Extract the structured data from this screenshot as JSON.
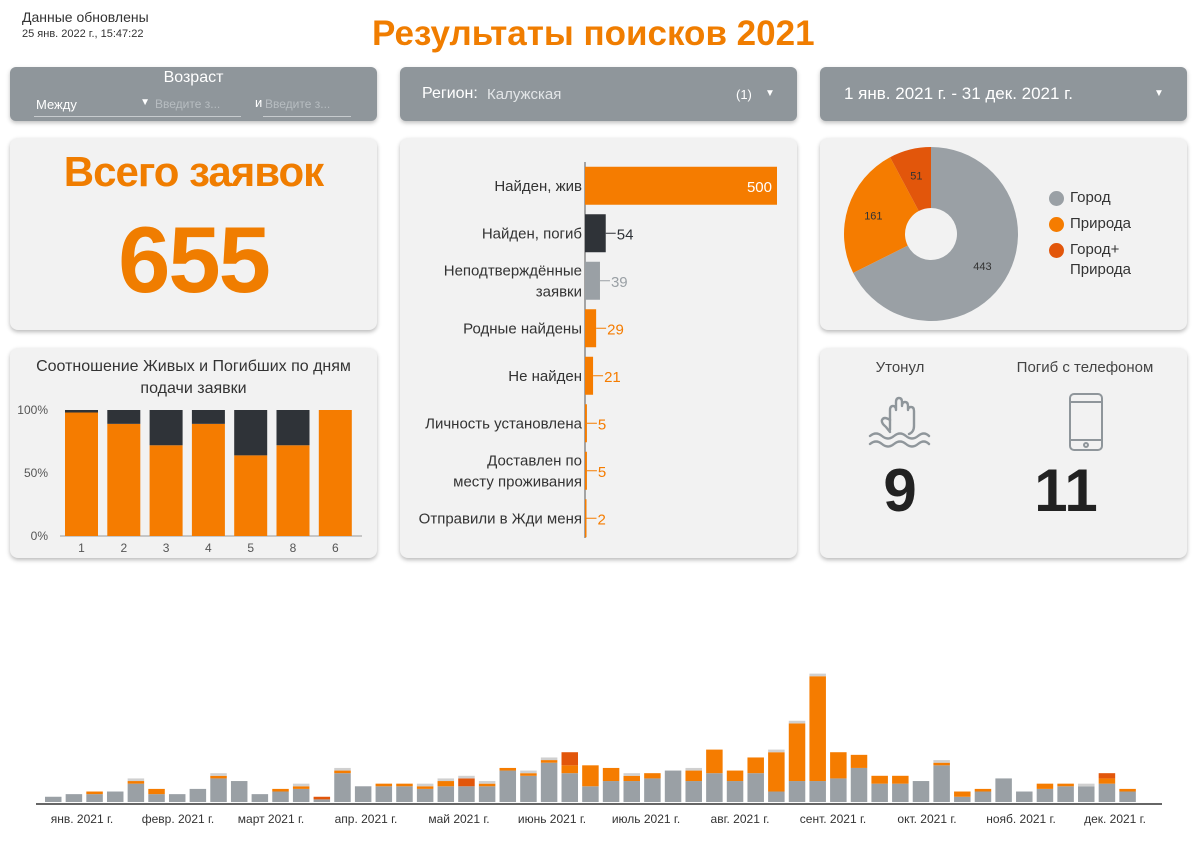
{
  "header": {
    "updated_label": "Данные обновлены",
    "updated_time": "25 янв. 2022 г., 15:47:22",
    "title": "Результаты поисков 2021"
  },
  "filters": {
    "age": {
      "title": "Возраст",
      "mode": "Между",
      "from_placeholder": "Введите з...",
      "and_label": "и",
      "to_placeholder": "Введите з..."
    },
    "region": {
      "label": "Регион:",
      "value": "Калужская",
      "count": "(1)"
    },
    "date_range": "1 янв. 2021 г. - 31 дек. 2021 г."
  },
  "total": {
    "title": "Всего заявок",
    "value": "655"
  },
  "colors": {
    "orange": "#f57c00",
    "dark": "#2f3338",
    "gray": "#9aa0a5",
    "dark_orange": "#e2560b",
    "card": "#f2f2f2",
    "control": "#8f969b"
  },
  "stats": {
    "drowned_label": "Утонул",
    "drowned_value": "9",
    "drowned_icon": "drowning-hand-icon",
    "phone_label": "Погиб с телефоном",
    "phone_value": "11",
    "phone_icon": "phone-icon"
  },
  "chart_data": [
    {
      "type": "bar",
      "orientation": "horizontal",
      "categories": [
        "Найден, жив",
        "Найден, погиб",
        "Неподтверждённые заявки",
        "Родные найдены",
        "Не найден",
        "Личность установлена",
        "Доставлен по месту проживания",
        "Отправили в Жди меня"
      ],
      "values": [
        500,
        54,
        39,
        29,
        21,
        5,
        5,
        2
      ],
      "value_labels": [
        "500",
        "54",
        "39",
        "29",
        "21",
        "5",
        "5",
        "2"
      ],
      "bar_colors": [
        "#f57c00",
        "#2f3338",
        "#9aa0a5",
        "#f57c00",
        "#f57c00",
        "#f57c00",
        "#f57c00",
        "#f57c00"
      ],
      "label_colors": [
        "#ffffff",
        "#2f3338",
        "#9aa0a5",
        "#f57c00",
        "#f57c00",
        "#f57c00",
        "#f57c00",
        "#f57c00"
      ],
      "xlim": [
        0,
        500
      ]
    },
    {
      "type": "pie",
      "donut": true,
      "labels": [
        "Город",
        "Природа",
        "Город+ Природа"
      ],
      "values": [
        443,
        161,
        51
      ],
      "colors": [
        "#9aa0a5",
        "#f57c00",
        "#e2560b"
      ],
      "legend_placement": "right"
    },
    {
      "type": "bar",
      "stacked": true,
      "normalized": true,
      "title": "Соотношение Живых и Погибших по дням подачи заявки",
      "categories": [
        "1",
        "2",
        "3",
        "4",
        "5",
        "8",
        "6"
      ],
      "series": [
        {
          "values": [
            98,
            89,
            72,
            89,
            64,
            72,
            100
          ],
          "color": "#f57c00"
        },
        {
          "values": [
            2,
            11,
            28,
            11,
            36,
            28,
            0
          ],
          "color": "#2f3338"
        }
      ],
      "yticks": [
        "100%",
        "50%",
        "0%"
      ],
      "ylim": [
        0,
        100
      ]
    },
    {
      "type": "bar",
      "stacked": true,
      "x_labels": [
        "янв. 2021 г.",
        "февр. 2021 г.",
        "март 2021 г.",
        "апр. 2021 г.",
        "май 2021 г.",
        "июнь 2021 г.",
        "июль 2021 г.",
        "авг. 2021 г.",
        "сент. 2021 г.",
        "окт. 2021 г.",
        "нояб. 2021 г.",
        "дек. 2021 г."
      ],
      "series": [
        {
          "color": "#9aa0a5",
          "values": [
            2,
            3,
            3,
            4,
            7,
            3,
            3,
            5,
            9,
            8,
            3,
            4,
            5,
            1,
            11,
            6,
            6,
            6,
            5,
            6,
            6,
            6,
            12,
            10,
            15,
            11,
            6,
            8,
            8,
            9,
            12,
            8,
            11,
            8,
            11,
            4,
            8,
            8,
            9,
            13,
            7,
            7,
            8,
            14,
            2,
            4,
            9,
            4,
            5,
            6,
            6,
            7,
            4
          ]
        },
        {
          "color": "#f57c00",
          "values": [
            0,
            0,
            1,
            0,
            1,
            2,
            0,
            0,
            1,
            0,
            0,
            1,
            1,
            0,
            1,
            0,
            1,
            1,
            1,
            2,
            0,
            1,
            1,
            1,
            1,
            3,
            8,
            5,
            2,
            2,
            0,
            4,
            9,
            4,
            6,
            15,
            22,
            40,
            10,
            5,
            3,
            3,
            0,
            1,
            2,
            1,
            0,
            0,
            2,
            1,
            0,
            2,
            1
          ]
        },
        {
          "color": "#e2560b",
          "values": [
            0,
            0,
            0,
            0,
            0,
            0,
            0,
            0,
            0,
            0,
            0,
            0,
            0,
            1,
            0,
            0,
            0,
            0,
            0,
            0,
            3,
            0,
            0,
            0,
            0,
            5,
            0,
            0,
            0,
            0,
            0,
            0,
            0,
            0,
            0,
            0,
            0,
            0,
            0,
            0,
            0,
            0,
            0,
            0,
            0,
            0,
            0,
            0,
            0,
            0,
            0,
            2,
            0
          ]
        },
        {
          "color": "#d0d0d0",
          "values": [
            0,
            0,
            0,
            0,
            1,
            0,
            0,
            0,
            1,
            0,
            0,
            0,
            1,
            0,
            1,
            0,
            0,
            0,
            1,
            1,
            1,
            1,
            0,
            1,
            1,
            0,
            0,
            0,
            1,
            0,
            0,
            1,
            0,
            0,
            0,
            1,
            1,
            1,
            0,
            0,
            0,
            0,
            0,
            1,
            0,
            0,
            0,
            0,
            0,
            0,
            1,
            0,
            0
          ]
        }
      ]
    }
  ]
}
